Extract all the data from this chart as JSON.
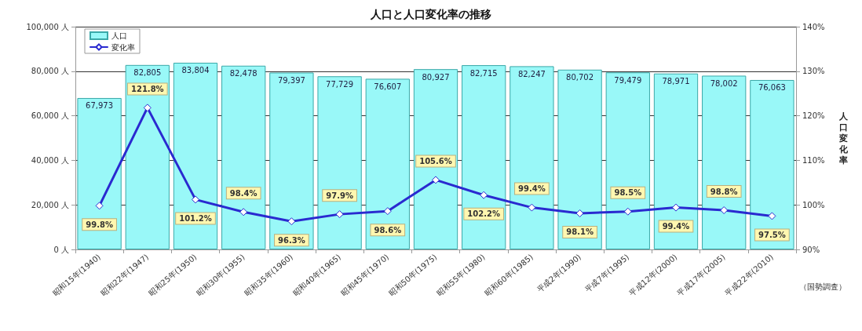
{
  "chart_data": {
    "type": "bar",
    "title": "人口と人口変化率の推移",
    "y2label": "人口変化率",
    "categories": [
      "昭和15年(1940)",
      "昭和22年(1947)",
      "昭和25年(1950)",
      "昭和30年(1955)",
      "昭和35年(1960)",
      "昭和40年(1965)",
      "昭和45年(1970)",
      "昭和50年(1975)",
      "昭和55年(1980)",
      "昭和60年(1985)",
      "平成2年(1990)",
      "平成7年(1995)",
      "平成12年(2000)",
      "平成17年(2005)",
      "平成22年(2010)"
    ],
    "series": [
      {
        "name": "人口",
        "color": "#99f8f8",
        "values": [
          67973,
          82805,
          83804,
          82478,
          79397,
          77729,
          76607,
          80927,
          82715,
          82247,
          80702,
          79479,
          78971,
          78002,
          76063
        ],
        "value_labels": [
          "67,973",
          "82,805",
          "83,804",
          "82,478",
          "79,397",
          "77,729",
          "76,607",
          "80,927",
          "82,715",
          "82,247",
          "80,702",
          "79,479",
          "78,971",
          "78,002",
          "76,063"
        ]
      },
      {
        "name": "変化率",
        "type": "line",
        "axis": "y2",
        "color": "#2a2ad0",
        "values": [
          99.8,
          121.8,
          101.2,
          98.4,
          96.3,
          97.9,
          98.6,
          105.6,
          102.2,
          99.4,
          98.1,
          98.5,
          99.4,
          98.8,
          97.5
        ],
        "value_labels": [
          "99.8%",
          "121.8%",
          "101.2%",
          "98.4%",
          "96.3%",
          "97.9%",
          "98.6%",
          "105.6%",
          "102.2%",
          "99.4%",
          "98.1%",
          "98.5%",
          "99.4%",
          "98.8%",
          "97.5%"
        ]
      }
    ],
    "ylim": [
      0,
      100000
    ],
    "yticks": [
      {
        "value": 0,
        "label": "0 人"
      },
      {
        "value": 20000,
        "label": "20,000 人"
      },
      {
        "value": 40000,
        "label": "40,000 人"
      },
      {
        "value": 60000,
        "label": "60,000 人"
      },
      {
        "value": 80000,
        "label": "80,000 人"
      },
      {
        "value": 100000,
        "label": "100,000 人"
      }
    ],
    "y2lim": [
      90,
      140
    ],
    "y2ticks": [
      {
        "value": 90,
        "label": "90%"
      },
      {
        "value": 100,
        "label": "100%"
      },
      {
        "value": 110,
        "label": "110%"
      },
      {
        "value": 120,
        "label": "120%"
      },
      {
        "value": 130,
        "label": "130%"
      },
      {
        "value": 140,
        "label": "140%"
      }
    ],
    "grid": "y",
    "legend": "top left",
    "marker": "diamond",
    "line_style": "solid",
    "annotations": [
      "（国勢調査）"
    ]
  }
}
